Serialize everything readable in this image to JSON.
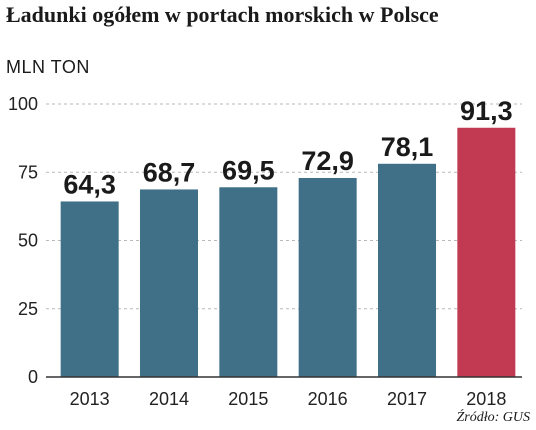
{
  "chart_data": {
    "type": "bar",
    "title": "Ładunki ogółem w portach morskich w Polsce",
    "subtitle": "MLN TON",
    "source": "Źródło: GUS",
    "categories": [
      "2013",
      "2014",
      "2015",
      "2016",
      "2017",
      "2018"
    ],
    "values": [
      64.3,
      68.7,
      69.5,
      72.9,
      78.1,
      91.3
    ],
    "value_labels": [
      "64,3",
      "68,7",
      "69,5",
      "72,9",
      "78,1",
      "91,3"
    ],
    "ylim": [
      0,
      100
    ],
    "yticks": [
      0,
      25,
      50,
      75,
      100
    ],
    "grid": true,
    "colors": {
      "bar": "#3f7088",
      "highlight": "#c23a52",
      "highlight_category": "2018"
    }
  }
}
